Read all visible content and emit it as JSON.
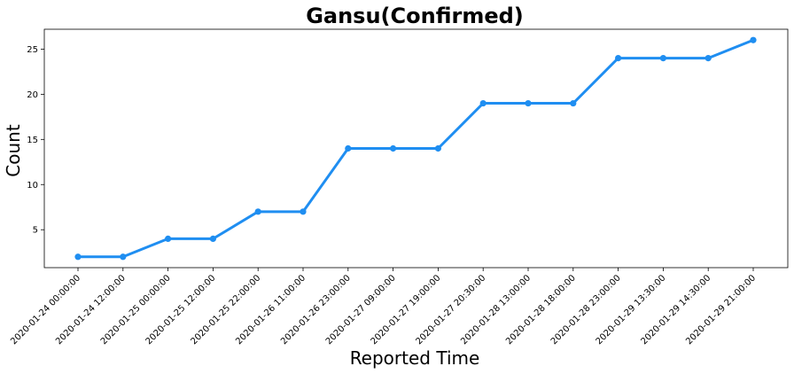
{
  "chart_data": {
    "type": "line",
    "title": "Gansu(Confirmed)",
    "xlabel": "Reported Time",
    "ylabel": "Count",
    "categories": [
      "2020-01-24 00:00:00",
      "2020-01-24 12:00:00",
      "2020-01-25 00:00:00",
      "2020-01-25 12:00:00",
      "2020-01-25 22:00:00",
      "2020-01-26 11:00:00",
      "2020-01-26 23:00:00",
      "2020-01-27 09:00:00",
      "2020-01-27 19:00:00",
      "2020-01-27 20:30:00",
      "2020-01-28 13:00:00",
      "2020-01-28 18:00:00",
      "2020-01-28 23:00:00",
      "2020-01-29 13:30:00",
      "2020-01-29 14:30:00",
      "2020-01-29 21:00:00"
    ],
    "series": [
      {
        "values": [
          2,
          2,
          4,
          4,
          7,
          7,
          14,
          14,
          14,
          19,
          19,
          19,
          24,
          24,
          24,
          26
        ],
        "color": "#1f8ef1"
      }
    ],
    "yticks": [
      5,
      10,
      15,
      20,
      25
    ],
    "ylim": [
      0.8,
      27.2
    ],
    "grid": false,
    "legend": "none"
  }
}
